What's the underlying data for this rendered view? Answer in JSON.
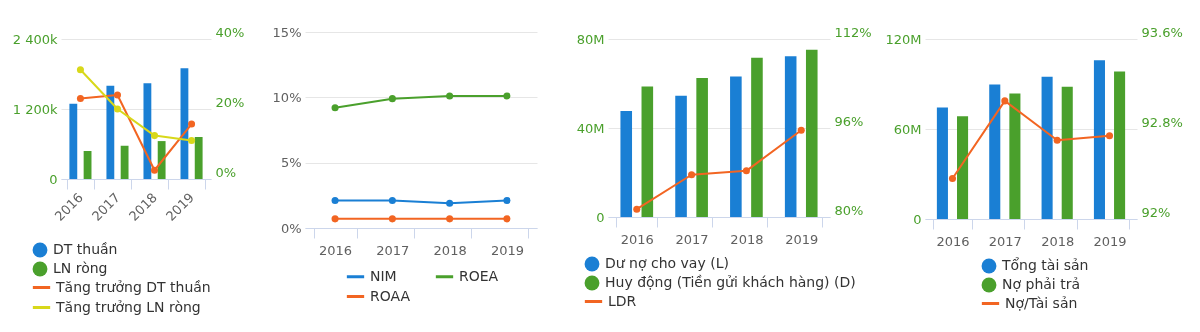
{
  "chart_data": [
    {
      "type": "bar",
      "categories": [
        "2016",
        "2017",
        "2018",
        "2019"
      ],
      "ylim": [
        0,
        2400
      ],
      "yticks": [
        {
          "value": 0,
          "label": "0"
        },
        {
          "value": 1200,
          "label": "1 200k"
        },
        {
          "value": 2400,
          "label": "2 400k"
        }
      ],
      "y2lim": [
        0,
        40
      ],
      "y2ticks": [
        {
          "value": 0,
          "label": "0%"
        },
        {
          "value": 20,
          "label": "20%"
        },
        {
          "value": 40,
          "label": "40%"
        }
      ],
      "grid": "y",
      "legend": "bottom",
      "marker": "circle",
      "series": [
        {
          "name": "DT thuần",
          "color": "#1a7fd4",
          "values": [
            1290,
            1600,
            1640,
            1900
          ]
        },
        {
          "name": "LN ròng",
          "color": "#4aa02c",
          "values": [
            480,
            570,
            650,
            720
          ]
        },
        {
          "name": "Tăng trưởng DT thuần",
          "type": "line",
          "axis": "y2",
          "color": "#f26522",
          "values": [
            23.0,
            24.0,
            2.5,
            15.7
          ]
        },
        {
          "name": "Tăng trưởng LN ròng",
          "type": "line",
          "axis": "y2",
          "color": "#d8d81a",
          "values": [
            31.2,
            20.0,
            12.4,
            11.0
          ]
        }
      ]
    },
    {
      "type": "line",
      "categories": [
        "2016",
        "2017",
        "2018",
        "2019"
      ],
      "ylim": [
        0,
        15
      ],
      "yticks": [
        {
          "value": 0,
          "label": "0%"
        },
        {
          "value": 5,
          "label": "5%"
        },
        {
          "value": 10,
          "label": "10%"
        },
        {
          "value": 15,
          "label": "15%"
        }
      ],
      "grid": "y",
      "legend": "bottom",
      "marker": "circle",
      "series": [
        {
          "name": "NIM",
          "color": "#1a7fd4",
          "values": [
            2.1,
            2.1,
            1.9,
            2.1
          ]
        },
        {
          "name": "ROEA",
          "color": "#4aa02c",
          "values": [
            9.2,
            9.9,
            10.1,
            10.1
          ]
        },
        {
          "name": "ROAA",
          "color": "#f26522",
          "values": [
            0.7,
            0.7,
            0.7,
            0.7
          ]
        }
      ]
    },
    {
      "type": "bar",
      "categories": [
        "2016",
        "2017",
        "2018",
        "2019"
      ],
      "ylim": [
        0,
        80
      ],
      "yticks": [
        {
          "value": 0,
          "label": "0"
        },
        {
          "value": 40,
          "label": "40M"
        },
        {
          "value": 80,
          "label": "80M"
        }
      ],
      "y2lim": [
        80,
        112
      ],
      "y2ticks": [
        {
          "value": 80,
          "label": "80%"
        },
        {
          "value": 96,
          "label": "96%"
        },
        {
          "value": 112,
          "label": "112%"
        }
      ],
      "grid": "y",
      "legend": "bottom",
      "marker": "circle",
      "series": [
        {
          "name": "Dư nợ cho vay (L)",
          "color": "#1a7fd4",
          "values": [
            47.6,
            54.5,
            63.1,
            72.2
          ]
        },
        {
          "name": "Huy động (Tiền gửi khách hàng) (D)",
          "color": "#4aa02c",
          "values": [
            58.6,
            62.5,
            71.6,
            75.2
          ]
        },
        {
          "name": "LDR",
          "type": "line",
          "axis": "y2",
          "color": "#f26522",
          "values": [
            81.4,
            87.6,
            88.3,
            95.6
          ]
        }
      ]
    },
    {
      "type": "bar",
      "categories": [
        "2016",
        "2017",
        "2018",
        "2019"
      ],
      "ylim": [
        0,
        120
      ],
      "yticks": [
        {
          "value": 0,
          "label": "0"
        },
        {
          "value": 60,
          "label": "60M"
        },
        {
          "value": 120,
          "label": "120M"
        }
      ],
      "y2lim": [
        92,
        93.6
      ],
      "y2ticks": [
        {
          "value": 92,
          "label": "92%"
        },
        {
          "value": 92.8,
          "label": "92.8%"
        },
        {
          "value": 93.6,
          "label": "93.6%"
        }
      ],
      "grid": "y",
      "legend": "bottom",
      "marker": "circle",
      "series": [
        {
          "name": "Tổng tài sản",
          "color": "#1a7fd4",
          "values": [
            74.3,
            89.7,
            94.8,
            105.9
          ]
        },
        {
          "name": "Nợ phải trả",
          "color": "#4aa02c",
          "values": [
            68.5,
            83.6,
            88.1,
            98.4
          ]
        },
        {
          "name": "Nợ/Tài sản",
          "type": "line",
          "axis": "y2",
          "color": "#f26522",
          "values": [
            92.36,
            93.05,
            92.7,
            92.74
          ]
        }
      ]
    }
  ]
}
